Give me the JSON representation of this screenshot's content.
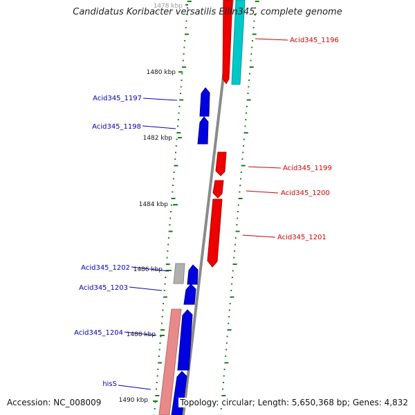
{
  "title": "Candidatus Koribacter versatilis Ellin345, complete genome",
  "footer": {
    "accession": "Accession: NC_008009",
    "summary": "Topology: circular; Length: 5,650,368 bp; Genes: 4,832"
  },
  "colors": {
    "forward_strand": "#0000e0",
    "reverse_strand": "#ee0000",
    "reverse_label": "#cc0000",
    "forward_label": "#0000b0",
    "pseudogene": "#b0b0b0",
    "rna": "#00c8c8",
    "rna_pink": "#e88a8a",
    "backbone": "#8a8a8a",
    "tick": "#1a7a1a"
  },
  "ruler": {
    "labels": [
      "1478 kbp",
      "1480 kbp",
      "1482 kbp",
      "1484 kbp",
      "1486 kbp",
      "1488 kbp",
      "1490 kbp"
    ]
  },
  "genes": [
    {
      "label": "Acid345_1196",
      "strand": "reverse"
    },
    {
      "label": "Acid345_1197",
      "strand": "forward"
    },
    {
      "label": "Acid345_1198",
      "strand": "forward"
    },
    {
      "label": "Acid345_1199",
      "strand": "reverse"
    },
    {
      "label": "Acid345_1200",
      "strand": "reverse"
    },
    {
      "label": "Acid345_1201",
      "strand": "reverse"
    },
    {
      "label": "Acid345_1202",
      "strand": "forward"
    },
    {
      "label": "Acid345_1203",
      "strand": "forward"
    },
    {
      "label": "Acid345_1204",
      "strand": "forward"
    },
    {
      "label": "hisS",
      "strand": "forward"
    }
  ]
}
